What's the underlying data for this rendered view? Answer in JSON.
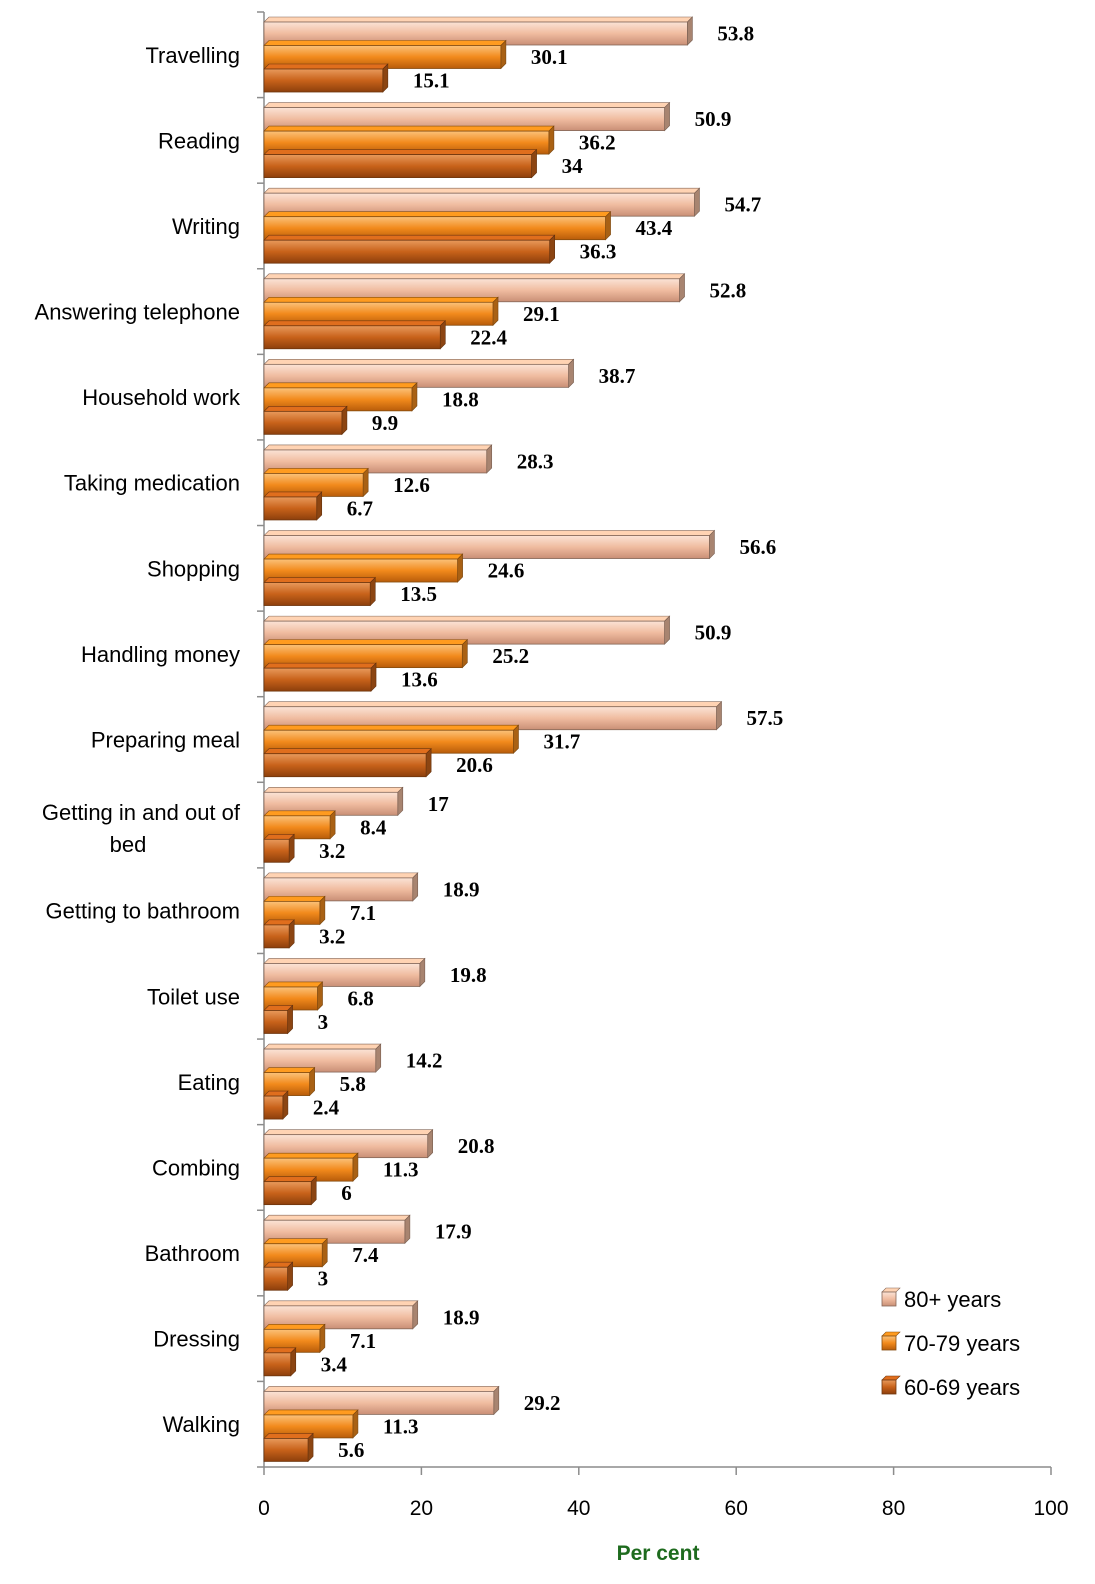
{
  "chart_data": {
    "type": "bar",
    "orientation": "horizontal",
    "categories": [
      "Travelling",
      "Reading",
      "Writing",
      "Answering telephone",
      "Household work",
      "Taking medication",
      "Shopping",
      "Handling money",
      "Preparing meal",
      "Getting in and out of bed",
      "Getting to bathroom",
      "Toilet use",
      "Eating",
      "Combing",
      "Bathroom",
      "Dressing",
      "Walking"
    ],
    "series": [
      {
        "name": "80+ years",
        "color": "#f0bca0",
        "values": [
          53.8,
          50.9,
          54.7,
          52.8,
          38.7,
          28.3,
          56.6,
          50.9,
          57.5,
          17,
          18.9,
          19.8,
          14.2,
          20.8,
          17.9,
          18.9,
          29.2
        ],
        "labels": [
          "53.8",
          "50.9",
          "54.7",
          "52.8",
          "38.7",
          "28.3",
          "56.6",
          "50.9",
          "57.5",
          "17",
          "18.9",
          "19.8",
          "14.2",
          "20.8",
          "17.9",
          "18.9",
          "29.2"
        ]
      },
      {
        "name": "70-79 years",
        "color": "#f28a1c",
        "values": [
          30.1,
          36.2,
          43.4,
          29.1,
          18.8,
          12.6,
          24.6,
          25.2,
          31.7,
          8.4,
          7.1,
          6.8,
          5.8,
          11.3,
          7.4,
          7.1,
          11.3
        ],
        "labels": [
          "30.1",
          "36.2",
          "43.4",
          "29.1",
          "18.8",
          "12.6",
          "24.6",
          "25.2",
          "31.7",
          "8.4",
          "7.1",
          "6.8",
          "5.8",
          "11.3",
          "7.4",
          "7.1",
          "11.3"
        ]
      },
      {
        "name": "60-69 years",
        "color": "#c8621a",
        "values": [
          15.1,
          34,
          36.3,
          22.4,
          9.9,
          6.7,
          13.5,
          13.6,
          20.6,
          3.2,
          3.2,
          3,
          2.4,
          6,
          3,
          3.4,
          5.6
        ],
        "labels": [
          "15.1",
          "34",
          "36.3",
          "22.4",
          "9.9",
          "6.7",
          "13.5",
          "13.6",
          "20.6",
          "3.2",
          "3.2",
          "3",
          "2.4",
          "6",
          "3",
          "3.4",
          "5.6"
        ]
      }
    ],
    "xlim": [
      0,
      100
    ],
    "xticks": [
      "0",
      "20",
      "40",
      "60",
      "80",
      "100"
    ],
    "xlabel": "Per cent",
    "xlabel_color": "#1e6b1e",
    "grid": false,
    "legend_position": "bottom-right"
  }
}
